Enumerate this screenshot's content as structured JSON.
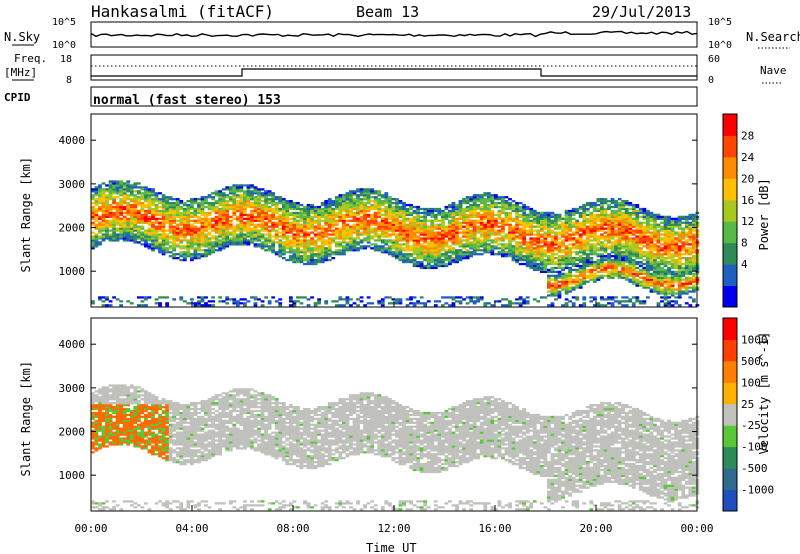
{
  "header": {
    "station": "Hankasalmi (fitACF)",
    "beam": "Beam 13",
    "date": "29/Jul/2013"
  },
  "strip": {
    "nsky_label": "N.Sky",
    "nsearch_label": "N.Search",
    "nave_label": "Nave",
    "freq_label_1": "Freq.",
    "freq_label_2": "[MHz]",
    "cpid_label": "CPID",
    "cpid_text": "normal (fast stereo) 153",
    "count_ticks": [
      "10^5",
      "10^0"
    ],
    "freq_ticks": [
      "18",
      "8"
    ],
    "nave_ticks": [
      "60",
      "0"
    ]
  },
  "chart_data": [
    {
      "type": "heatmap",
      "name": "power",
      "ylabel": "Slant Range [km]",
      "xlabel": "",
      "ylim": [
        180,
        4600
      ],
      "yticks": [
        1000,
        2000,
        3000,
        4000
      ],
      "xlim": [
        0,
        24
      ],
      "colorbar": {
        "label": "Power [dB]",
        "ticks": [
          "28",
          "24",
          "20",
          "16",
          "12",
          "8",
          "4"
        ],
        "colors": [
          "#0000ee",
          "#1f5fbf",
          "#2e8b57",
          "#58b947",
          "#a8c820",
          "#ffc000",
          "#ff8c00",
          "#ff4500",
          "#ff0000"
        ]
      }
    },
    {
      "type": "heatmap",
      "name": "velocity",
      "ylabel": "Slant Range [km]",
      "xlabel": "Time UT",
      "ylim": [
        180,
        4600
      ],
      "yticks": [
        1000,
        2000,
        3000,
        4000
      ],
      "xlim": [
        0,
        24
      ],
      "xticks": [
        "00:00",
        "04:00",
        "08:00",
        "12:00",
        "16:00",
        "20:00",
        "00:00"
      ],
      "colorbar": {
        "label": "Velocity [m s^-1]",
        "ticks": [
          "1000",
          "500",
          "100",
          "25",
          "-25",
          "-100",
          "-500",
          "-1000"
        ],
        "colors": [
          "#1f4fbf",
          "#2e6b8f",
          "#2e8b57",
          "#58c838",
          "#c0c0bc",
          "#ffb000",
          "#ff8000",
          "#ff4000",
          "#ff0000"
        ]
      }
    }
  ]
}
